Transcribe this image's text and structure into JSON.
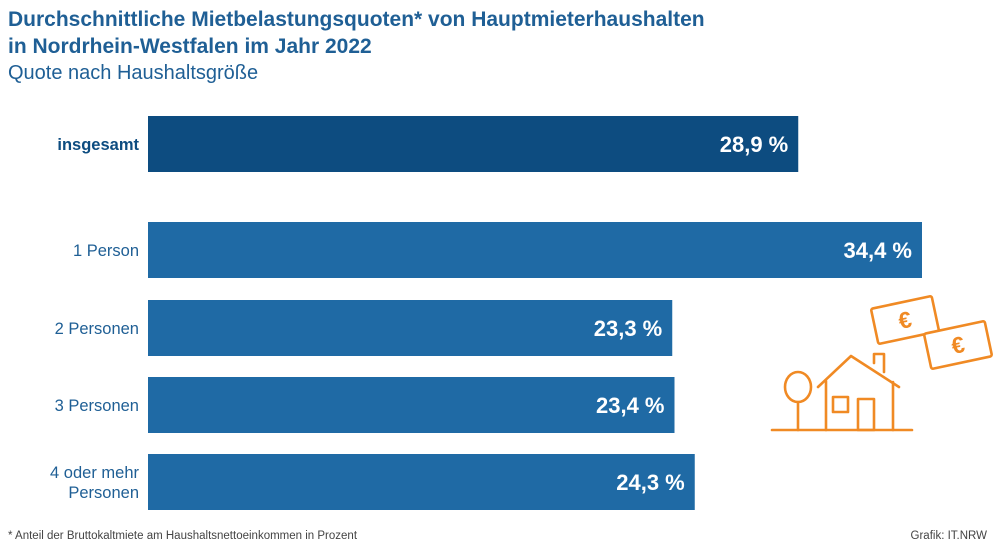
{
  "header": {
    "title_line1": "Durchschnittliche Mietbelastungsquoten* von Hauptmieterhaushalten",
    "title_line2": "in Nordrhein-Westfalen im Jahr 2022",
    "subtitle": "Quote nach Haushaltsgröße"
  },
  "footer": {
    "footnote": "*  Anteil der Bruttokaltmiete am Haushaltsnettoeinkommen in Prozent",
    "source": "Grafik: IT.NRW"
  },
  "colors": {
    "total_bar": "#0d4c80",
    "bar": "#1f6aa5",
    "title": "#1f5f95",
    "icon": "#f08a24"
  },
  "icon": "house-with-tree-and-euro-banknotes-icon",
  "chart_data": {
    "type": "bar",
    "orientation": "horizontal",
    "categories": [
      [
        "insgesamt"
      ],
      [
        "1 Person"
      ],
      [
        "2 Personen"
      ],
      [
        "3 Personen"
      ],
      [
        "4 oder mehr",
        "Personen"
      ]
    ],
    "values": [
      28.9,
      34.4,
      23.3,
      23.4,
      24.3
    ],
    "value_labels": [
      "28,9 %",
      "34,4 %",
      "23,3 %",
      "23,4 %",
      "24,3 %"
    ],
    "highlight_index": 0,
    "unit": "%",
    "grid": false,
    "legend": "none"
  }
}
